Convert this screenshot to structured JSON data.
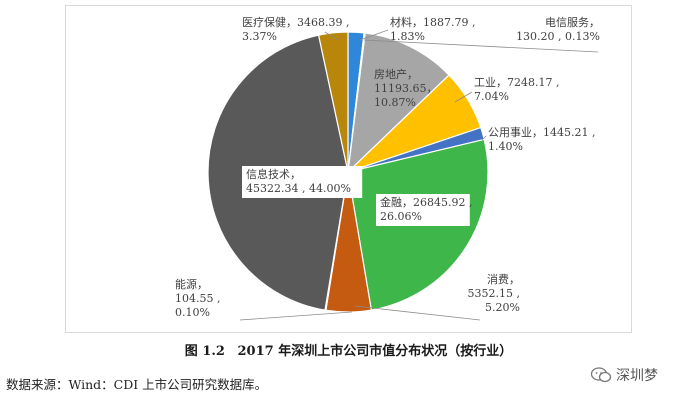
{
  "chart_data": {
    "type": "pie",
    "slices": [
      {
        "label": "材料",
        "value_text": "1887.79",
        "pct_text": "1.83%",
        "value": 1887.79,
        "pct": 1.83,
        "color": "#2e87d9"
      },
      {
        "label": "电信服务",
        "value_text": "130.20",
        "pct_text": "0.13%",
        "value": 130.2,
        "pct": 0.13,
        "color": "#1f4e79"
      },
      {
        "label": "房地产",
        "value_text": "11193.65",
        "pct_text": "10.87%",
        "value": 11193.65,
        "pct": 10.87,
        "color": "#a6a6a6"
      },
      {
        "label": "工业",
        "value_text": "7248.17",
        "pct_text": "7.04%",
        "value": 7248.17,
        "pct": 7.04,
        "color": "#ffc000"
      },
      {
        "label": "公用事业",
        "value_text": "1445.21",
        "pct_text": "1.40%",
        "value": 1445.21,
        "pct": 1.4,
        "color": "#4472c4"
      },
      {
        "label": "金融",
        "value_text": "26845.92",
        "pct_text": "26.06%",
        "value": 26845.92,
        "pct": 26.06,
        "color": "#3fb64a"
      },
      {
        "label": "消费",
        "value_text": "5352.15",
        "pct_text": "5.20%",
        "value": 5352.15,
        "pct": 5.2,
        "color": "#c55a11"
      },
      {
        "label": "能源",
        "value_text": "104.55",
        "pct_text": "0.10%",
        "value": 104.55,
        "pct": 0.1,
        "color": "#264478"
      },
      {
        "label": "信息技术",
        "value_text": "45322.34",
        "pct_text": "44.00%",
        "value": 45322.34,
        "pct": 44.0,
        "color": "#595959"
      },
      {
        "label": "医疗保健",
        "value_text": "3468.39",
        "pct_text": "3.37%",
        "value": 3468.39,
        "pct": 3.37,
        "color": "#b8860b"
      }
    ]
  },
  "caption": {
    "figure_no": "图 1.2",
    "title": "2017 年深圳上市公司市值分布状况（按行业）"
  },
  "source_note": "数据来源：Wind：CDI 上市公司研究数据库。",
  "watermark": {
    "text": "深圳梦"
  }
}
